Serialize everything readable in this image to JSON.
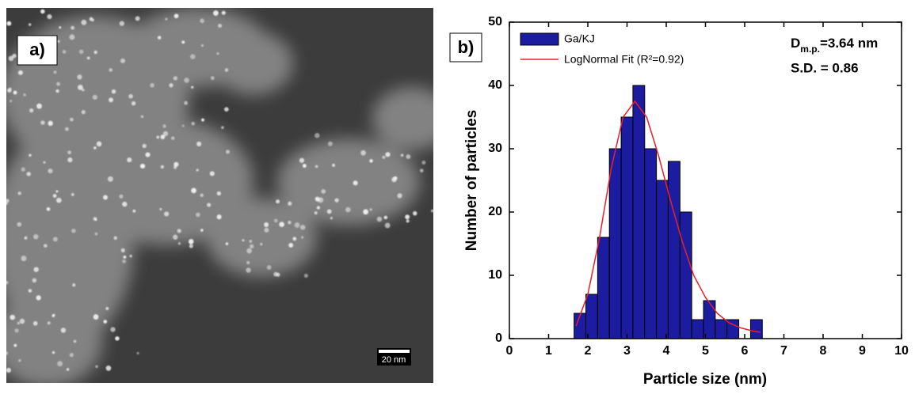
{
  "panel_a": {
    "label": "a)",
    "scale_bar": "20 nm"
  },
  "chart_data": {
    "type": "histogram",
    "panel_label": "b)",
    "xlabel": "Particle size (nm)",
    "ylabel": "Number of particles",
    "bins": [
      1.65,
      1.95,
      2.25,
      2.55,
      2.85,
      3.15,
      3.45,
      3.75,
      4.05,
      4.35,
      4.65,
      4.95,
      5.25,
      5.55,
      5.85,
      6.15,
      6.45
    ],
    "series": [
      {
        "name": "Ga/KJ",
        "color": "#1c1ca0",
        "values": [
          4,
          7,
          16,
          30,
          35,
          40,
          30,
          25,
          28,
          20,
          3,
          6,
          3,
          3,
          0,
          3
        ]
      }
    ],
    "fit": {
      "name": "LogNormal Fit (R²=0.92)",
      "color": "#e8202a",
      "x": [
        1.7,
        2.0,
        2.3,
        2.6,
        2.9,
        3.2,
        3.5,
        3.8,
        4.1,
        4.4,
        4.7,
        5.0,
        5.3,
        5.6,
        5.9,
        6.2,
        6.4
      ],
      "values": [
        2,
        7,
        16,
        27,
        35,
        37.5,
        35,
        29,
        22,
        15.5,
        10,
        6.5,
        4,
        2.5,
        1.7,
        1.2,
        1
      ]
    },
    "annotation": {
      "symbol": "D",
      "subscript": "m.p.",
      "text": "=3.64 nm"
    },
    "annotation2": "S.D. = 0.86",
    "xlim": [
      0,
      10
    ],
    "xticks": [
      0,
      1,
      2,
      3,
      4,
      5,
      6,
      7,
      8,
      9,
      10
    ],
    "ylim": [
      0,
      50
    ],
    "yticks": [
      0,
      10,
      20,
      30,
      40,
      50
    ]
  }
}
